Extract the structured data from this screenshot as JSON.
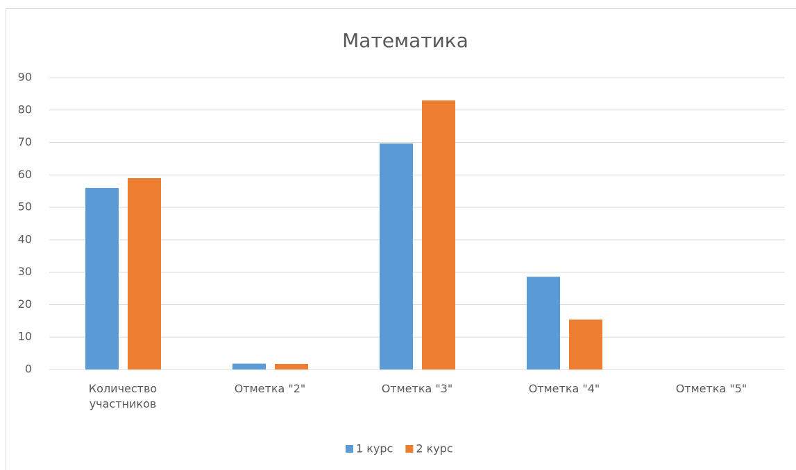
{
  "chart_data": {
    "type": "bar",
    "title": "Математика",
    "categories": [
      "Количество участников",
      "Отметка \"2\"",
      "Отметка \"3\"",
      "Отметка \"4\"",
      "Отметка \"5\""
    ],
    "series": [
      {
        "name": "1 курс",
        "color": "#5b9bd5",
        "values": [
          56,
          1.8,
          69.7,
          28.6,
          0
        ]
      },
      {
        "name": "2 курс",
        "color": "#ed7d31",
        "values": [
          59,
          1.7,
          83,
          15.4,
          0
        ]
      }
    ],
    "ylim": [
      0,
      90
    ],
    "yticks": [
      0,
      10,
      20,
      30,
      40,
      50,
      60,
      70,
      80,
      90
    ],
    "grid": true,
    "legend": "bottom"
  }
}
